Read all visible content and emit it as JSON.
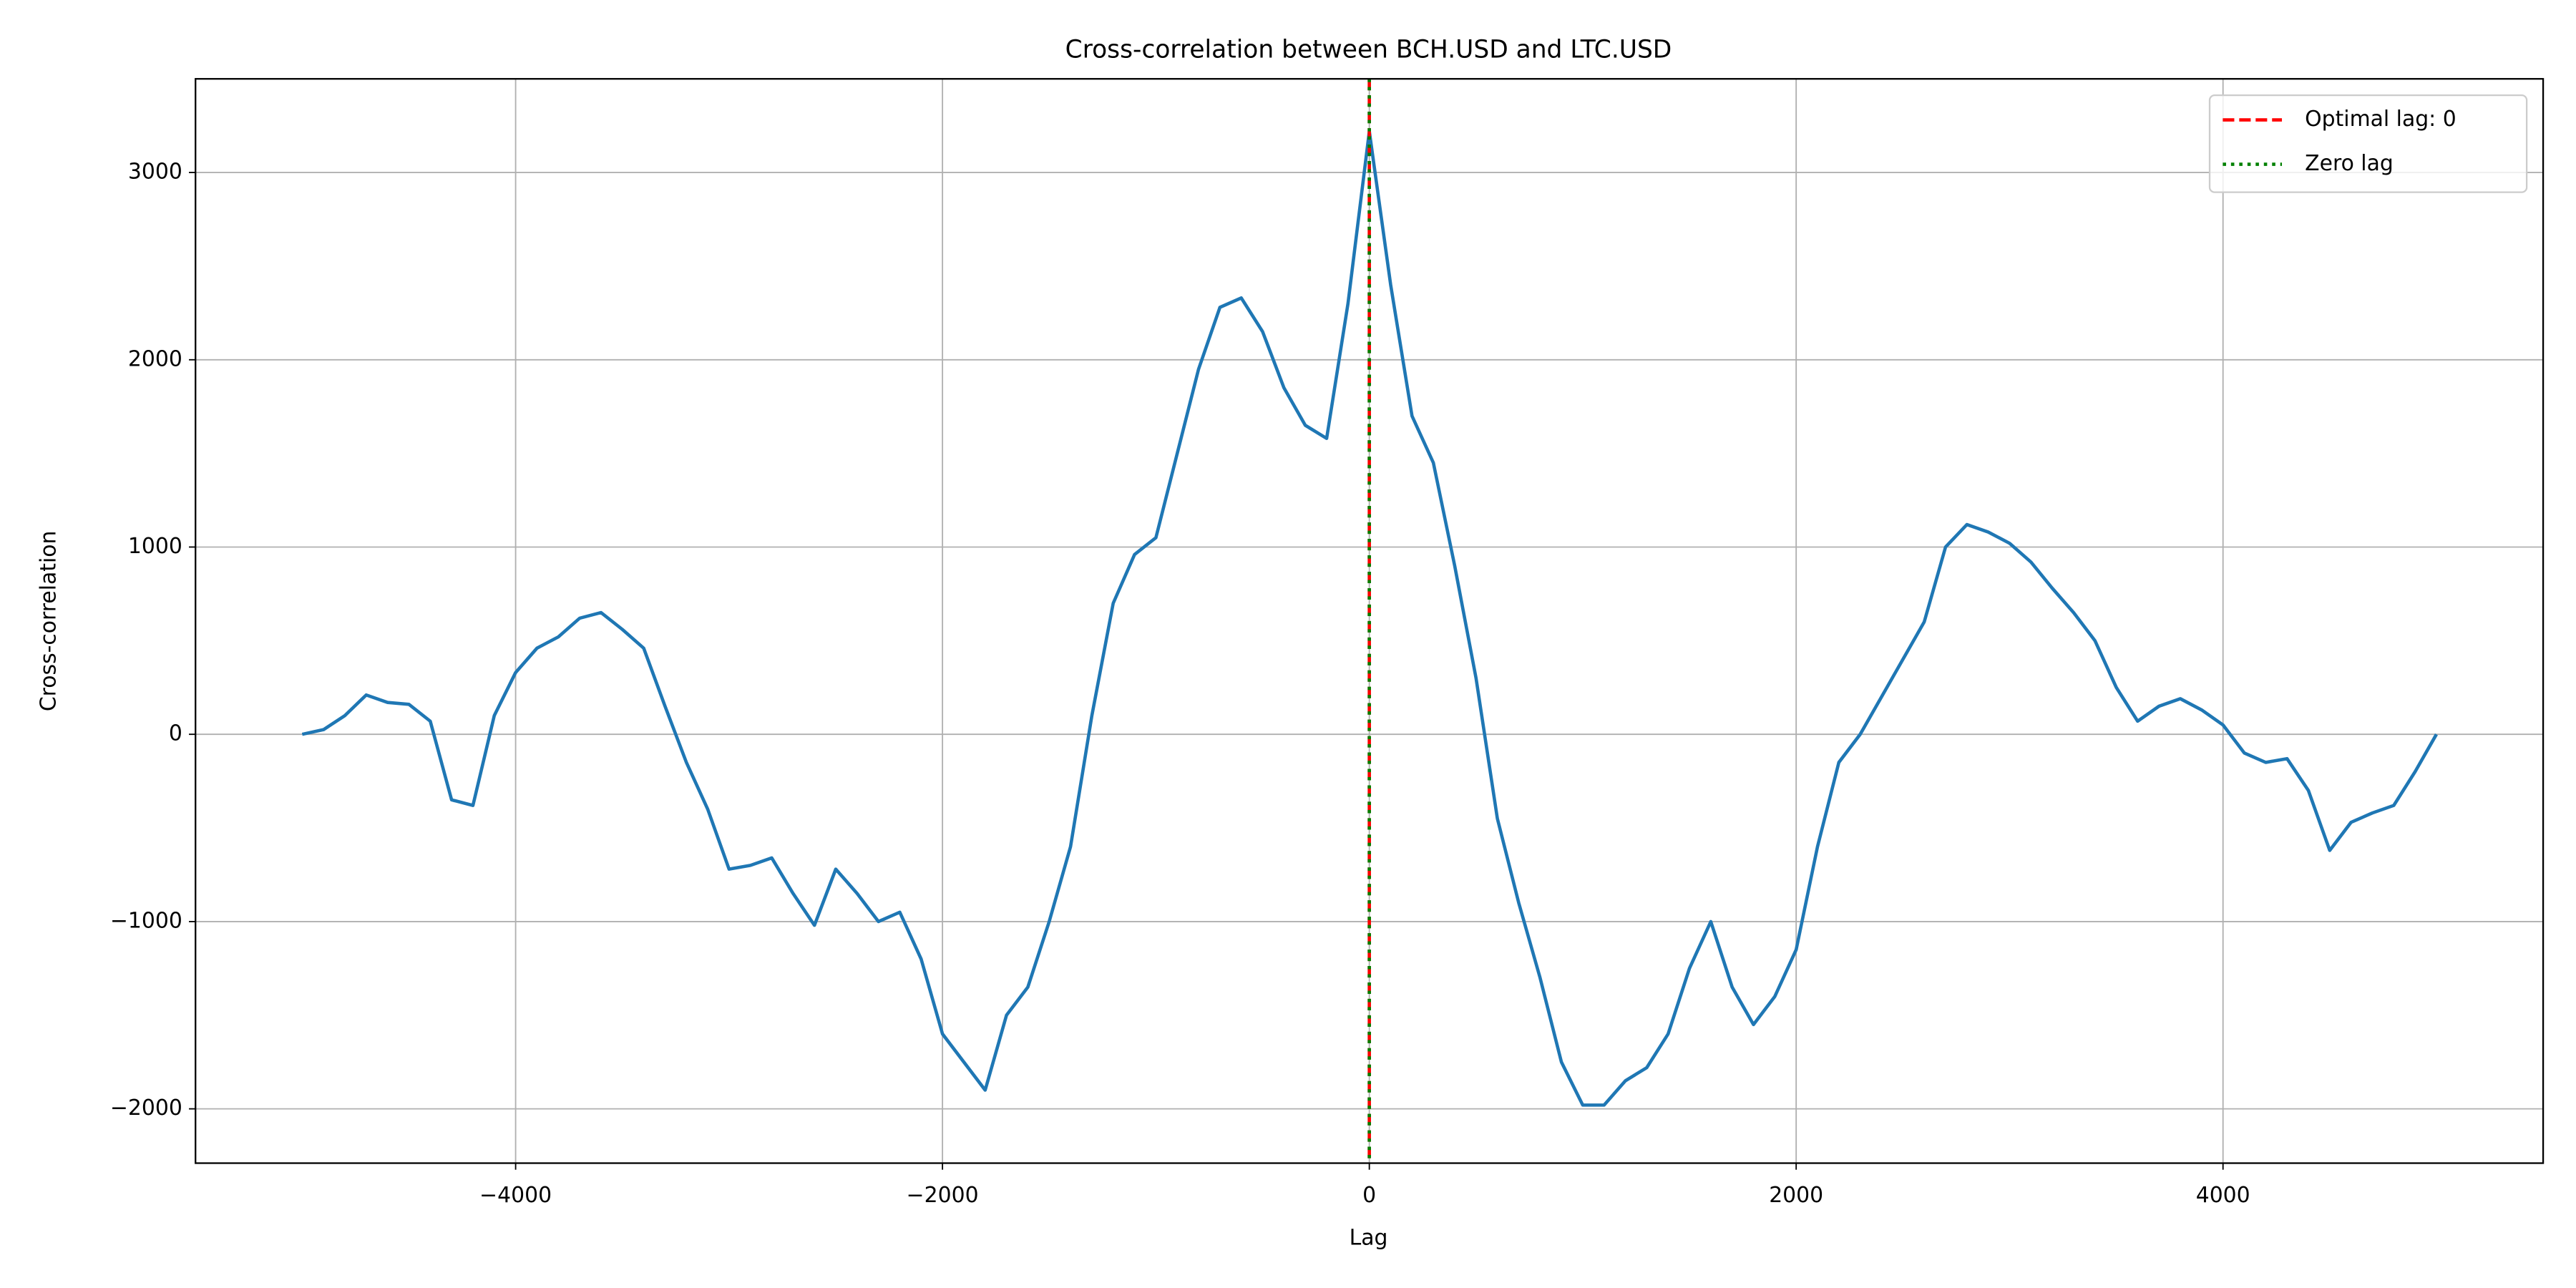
{
  "chart_data": {
    "type": "line",
    "title": "Cross-correlation between BCH.USD and LTC.USD",
    "xlabel": "Lag",
    "ylabel": "Cross-correlation",
    "x": [
      -5000,
      -4900,
      -4800,
      -4700,
      -4600,
      -4500,
      -4400,
      -4300,
      -4200,
      -4100,
      -4000,
      -3900,
      -3800,
      -3700,
      -3600,
      -3500,
      -3400,
      -3300,
      -3200,
      -3100,
      -3000,
      -2900,
      -2800,
      -2700,
      -2600,
      -2500,
      -2400,
      -2300,
      -2200,
      -2100,
      -2000,
      -1900,
      -1800,
      -1700,
      -1600,
      -1500,
      -1400,
      -1300,
      -1200,
      -1100,
      -1000,
      -900,
      -800,
      -700,
      -600,
      -500,
      -400,
      -300,
      -200,
      -100,
      0,
      100,
      200,
      300,
      400,
      500,
      600,
      700,
      800,
      900,
      1000,
      1100,
      1200,
      1300,
      1400,
      1500,
      1600,
      1700,
      1800,
      1900,
      2000,
      2100,
      2200,
      2300,
      2400,
      2500,
      2600,
      2700,
      2800,
      2900,
      3000,
      3100,
      3200,
      3300,
      3400,
      3500,
      3600,
      3700,
      3800,
      3900,
      4000,
      4100,
      4200,
      4300,
      4400,
      4500,
      4600,
      4700,
      4800,
      4900,
      5000
    ],
    "values": [
      0,
      25,
      100,
      210,
      170,
      160,
      70,
      -350,
      -380,
      100,
      330,
      460,
      520,
      620,
      650,
      560,
      460,
      150,
      -150,
      -400,
      -720,
      -700,
      -660,
      -850,
      -1020,
      -720,
      -850,
      -1000,
      -950,
      -1200,
      -1600,
      -1750,
      -1900,
      -1500,
      -1350,
      -1000,
      -600,
      100,
      700,
      960,
      1050,
      1500,
      1950,
      2280,
      2330,
      2150,
      1850,
      1650,
      1580,
      2300,
      3220,
      2400,
      1700,
      1450,
      900,
      300,
      -450,
      -900,
      -1300,
      -1750,
      -1980,
      -1980,
      -1850,
      -1780,
      -1600,
      -1250,
      -1000,
      -1350,
      -1550,
      -1400,
      -1150,
      -600,
      -150,
      0,
      200,
      400,
      600,
      1000,
      1120,
      1080,
      1020,
      920,
      780,
      650,
      500,
      250,
      70,
      150,
      190,
      130,
      50,
      -100,
      -150,
      -130,
      -300,
      -620,
      -470,
      -420,
      -380,
      -200,
      0
    ],
    "color": "#1f77b4",
    "vlines": [
      {
        "x": 0,
        "name": "Optimal lag: 0",
        "color": "#ff0000",
        "style": "dashed"
      },
      {
        "x": 0,
        "name": "Zero lag",
        "color": "#008000",
        "style": "dotted"
      }
    ],
    "xlim": [
      -5500,
      5500
    ],
    "ylim": [
      -2290,
      3500
    ],
    "xticks": [
      {
        "value": -4000,
        "label": "−4000"
      },
      {
        "value": -2000,
        "label": "−2000"
      },
      0,
      2000,
      4000
    ],
    "yticks": [
      {
        "value": -2000,
        "label": "−2000"
      },
      {
        "value": -1000,
        "label": "−1000"
      },
      0,
      1000,
      2000,
      3000
    ],
    "grid": true,
    "legend": "upper right"
  }
}
